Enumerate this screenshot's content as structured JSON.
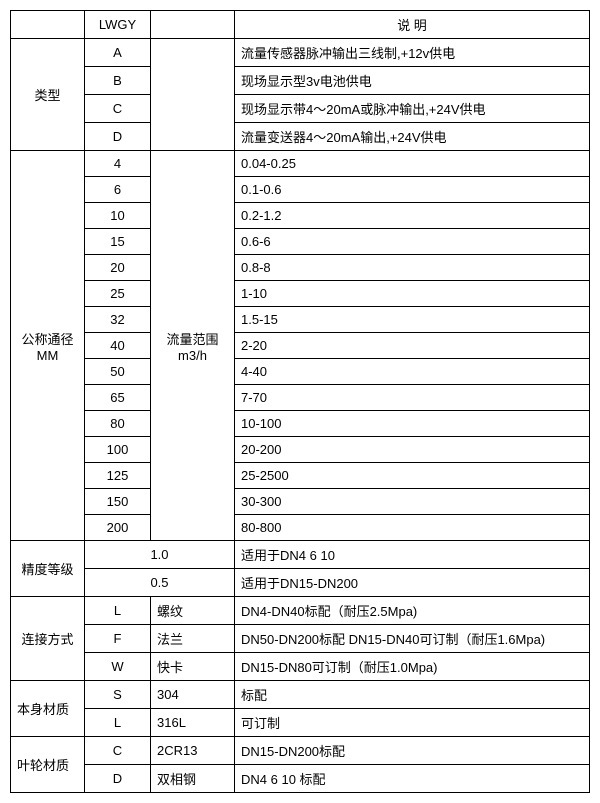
{
  "header": {
    "col1": "",
    "col2": "LWGY",
    "col3": "",
    "col4": "说        明"
  },
  "type": {
    "label": "类型",
    "rows": [
      {
        "code": "A",
        "desc": "流量传感器脉冲输出三线制,+12v供电"
      },
      {
        "code": "B",
        "desc": "现场显示型3v电池供电"
      },
      {
        "code": "C",
        "desc": "现场显示带4～20mA或脉冲输出,+24V供电"
      },
      {
        "code": "D",
        "desc": "流量变送器4～20mA输出,+24V供电"
      }
    ]
  },
  "dn": {
    "label1": "公称通径",
    "label2": "MM",
    "rangeLabel1": "流量范围",
    "rangeLabel2": "m3/h",
    "rows": [
      {
        "code": "4",
        "desc": "0.04-0.25"
      },
      {
        "code": "6",
        "desc": "0.1-0.6"
      },
      {
        "code": "10",
        "desc": "0.2-1.2"
      },
      {
        "code": "15",
        "desc": "0.6-6"
      },
      {
        "code": "20",
        "desc": "0.8-8"
      },
      {
        "code": "25",
        "desc": "1-10"
      },
      {
        "code": "32",
        "desc": "1.5-15"
      },
      {
        "code": "40",
        "desc": "2-20"
      },
      {
        "code": "50",
        "desc": "4-40"
      },
      {
        "code": "65",
        "desc": "7-70"
      },
      {
        "code": "80",
        "desc": "10-100"
      },
      {
        "code": "100",
        "desc": "20-200"
      },
      {
        "code": "125",
        "desc": "25-2500"
      },
      {
        "code": "150",
        "desc": "30-300"
      },
      {
        "code": "200",
        "desc": "80-800"
      }
    ]
  },
  "accuracy": {
    "label": "精度等级",
    "rows": [
      {
        "val": "1.0",
        "desc": "适用于DN4  6  10"
      },
      {
        "val": "0.5",
        "desc": "适用于DN15-DN200"
      }
    ]
  },
  "conn": {
    "label": "连接方式",
    "rows": [
      {
        "code": "L",
        "name": "螺纹",
        "desc": "DN4-DN40标配（耐压2.5Mpa)"
      },
      {
        "code": "F",
        "name": "法兰",
        "desc": "DN50-DN200标配 DN15-DN40可订制（耐压1.6Mpa)"
      },
      {
        "code": "W",
        "name": "快卡",
        "desc": "DN15-DN80可订制（耐压1.0Mpa)"
      }
    ]
  },
  "body": {
    "label": "本身材质",
    "rows": [
      {
        "code": "S",
        "name": "304",
        "desc": "标配"
      },
      {
        "code": "L",
        "name": "316L",
        "desc": "可订制"
      }
    ]
  },
  "impeller": {
    "label": "叶轮材质",
    "rows": [
      {
        "code": "C",
        "name": "2CR13",
        "desc": "DN15-DN200标配"
      },
      {
        "code": "D",
        "name": "双相钢",
        "desc": "DN4 6 10 标配"
      }
    ]
  }
}
